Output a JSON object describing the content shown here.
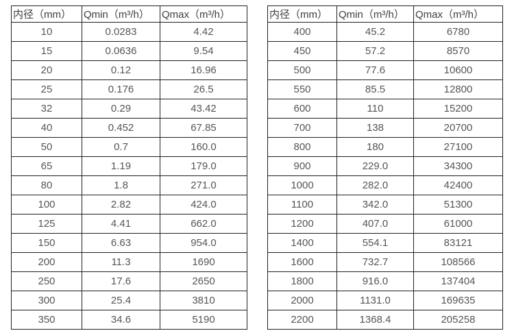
{
  "page": {
    "background": "#ffffff",
    "grid_border_color": "#1f1f1f",
    "header_text_color": "#3f3f3f",
    "cell_text_color": "#555555"
  },
  "tables": [
    {
      "name": "small-diameter-flow-table",
      "headers": [
        "内径（mm）",
        "Qmin（m³/h）",
        "Qmax（m³/h）"
      ],
      "rows": [
        [
          "10",
          "0.0283",
          "4.42"
        ],
        [
          "15",
          "0.0636",
          "9.54"
        ],
        [
          "20",
          "0.12",
          "16.96"
        ],
        [
          "25",
          "0.176",
          "26.5"
        ],
        [
          "32",
          "0.29",
          "43.42"
        ],
        [
          "40",
          "0.452",
          "67.85"
        ],
        [
          "50",
          "0.7",
          "160.0"
        ],
        [
          "65",
          "1.19",
          "179.0"
        ],
        [
          "80",
          "1.8",
          "271.0"
        ],
        [
          "100",
          "2.82",
          "424.0"
        ],
        [
          "125",
          "4.41",
          "662.0"
        ],
        [
          "150",
          "6.63",
          "954.0"
        ],
        [
          "200",
          "11.3",
          "1690"
        ],
        [
          "250",
          "17.6",
          "2650"
        ],
        [
          "300",
          "25.4",
          "3810"
        ],
        [
          "350",
          "34.6",
          "5190"
        ]
      ]
    },
    {
      "name": "large-diameter-flow-table",
      "headers": [
        "内径（mm）",
        "Qmin（m³/h）",
        "Qmax（m³/h）"
      ],
      "rows": [
        [
          "400",
          "45.2",
          "6780"
        ],
        [
          "450",
          "57.2",
          "8570"
        ],
        [
          "500",
          "77.6",
          "10600"
        ],
        [
          "550",
          "85.5",
          "12800"
        ],
        [
          "600",
          "110",
          "15200"
        ],
        [
          "700",
          "138",
          "20700"
        ],
        [
          "800",
          "180",
          "27100"
        ],
        [
          "900",
          "229.0",
          "34300"
        ],
        [
          "1000",
          "282.0",
          "42400"
        ],
        [
          "1100",
          "342.0",
          "51300"
        ],
        [
          "1200",
          "407.0",
          "61000"
        ],
        [
          "1400",
          "554.1",
          "83121"
        ],
        [
          "1600",
          "732.7",
          "108566"
        ],
        [
          "1800",
          "916.0",
          "137404"
        ],
        [
          "2000",
          "1131.0",
          "169635"
        ],
        [
          "2200",
          "1368.4",
          "205258"
        ]
      ]
    }
  ]
}
